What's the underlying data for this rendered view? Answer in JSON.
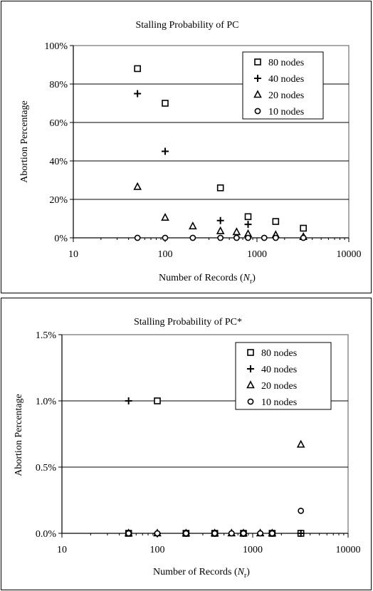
{
  "chart_data": [
    {
      "type": "scatter",
      "title": "Stalling Probability of PC",
      "xlabel": "Number of Records (",
      "xlabel_var": "N",
      "xlabel_sub": "r",
      "xlabel_end": ")",
      "ylabel": "Abortion Percentage",
      "x_scale": "log",
      "xlim": [
        10,
        10000
      ],
      "ylim": [
        0,
        100
      ],
      "yticks": [
        0,
        20,
        40,
        60,
        80,
        100
      ],
      "ytick_labels": [
        "0%",
        "20%",
        "40%",
        "60%",
        "80%",
        "100%"
      ],
      "xticks": [
        10,
        100,
        1000,
        10000
      ],
      "xtick_labels": [
        "10",
        "100",
        "1000",
        "10000"
      ],
      "grid": "horizontal",
      "legend_position": "top-right",
      "series": [
        {
          "name": "80 nodes",
          "marker": "square",
          "x": [
            50,
            100,
            400,
            800,
            1600,
            3200
          ],
          "y": [
            88,
            70,
            26,
            11,
            8.5,
            5
          ]
        },
        {
          "name": "40 nodes",
          "marker": "plus",
          "x": [
            50,
            100,
            400,
            800
          ],
          "y": [
            75,
            45,
            9,
            7
          ]
        },
        {
          "name": "20 nodes",
          "marker": "triangle",
          "x": [
            50,
            100,
            200,
            400,
            600,
            800,
            1600,
            3200
          ],
          "y": [
            26.5,
            10.5,
            6,
            3.5,
            3,
            2,
            1.5,
            0.5
          ]
        },
        {
          "name": "10 nodes",
          "marker": "circle",
          "x": [
            50,
            100,
            200,
            400,
            600,
            800,
            1200,
            1600,
            3200
          ],
          "y": [
            0,
            0,
            0,
            0,
            0,
            0,
            0,
            0,
            0
          ]
        }
      ]
    },
    {
      "type": "scatter",
      "title": "Stalling Probability of PC*",
      "xlabel": "Number of Records (",
      "xlabel_var": "N",
      "xlabel_sub": "r",
      "xlabel_end": ")",
      "ylabel": "Abortion Percentage",
      "x_scale": "log",
      "xlim": [
        10,
        10000
      ],
      "ylim": [
        0,
        1.5
      ],
      "yticks": [
        0,
        0.5,
        1.0,
        1.5
      ],
      "ytick_labels": [
        "0.0%",
        "0.5%",
        "1.0%",
        "1.5%"
      ],
      "xticks": [
        10,
        100,
        1000,
        10000
      ],
      "xtick_labels": [
        "10",
        "100",
        "1000",
        "10000"
      ],
      "grid": "horizontal",
      "legend_position": "top-right",
      "series": [
        {
          "name": "80 nodes",
          "marker": "square",
          "x": [
            50,
            100,
            200,
            400,
            800,
            1600,
            3200
          ],
          "y": [
            0,
            1.0,
            0,
            0,
            0,
            0,
            0
          ]
        },
        {
          "name": "40 nodes",
          "marker": "plus",
          "x": [
            50,
            100,
            200,
            400,
            800,
            1600,
            3200
          ],
          "y": [
            1.0,
            0,
            0,
            0,
            0,
            0,
            0
          ]
        },
        {
          "name": "20 nodes",
          "marker": "triangle",
          "x": [
            50,
            100,
            200,
            400,
            600,
            800,
            1200,
            1600,
            3200
          ],
          "y": [
            0,
            0,
            0,
            0,
            0,
            0,
            0,
            0,
            0.67
          ]
        },
        {
          "name": "10 nodes",
          "marker": "circle",
          "x": [
            50,
            100,
            200,
            400,
            600,
            800,
            1200,
            1600,
            3200
          ],
          "y": [
            0,
            0,
            0,
            0,
            0,
            0,
            0,
            0,
            0.17
          ]
        }
      ]
    }
  ]
}
